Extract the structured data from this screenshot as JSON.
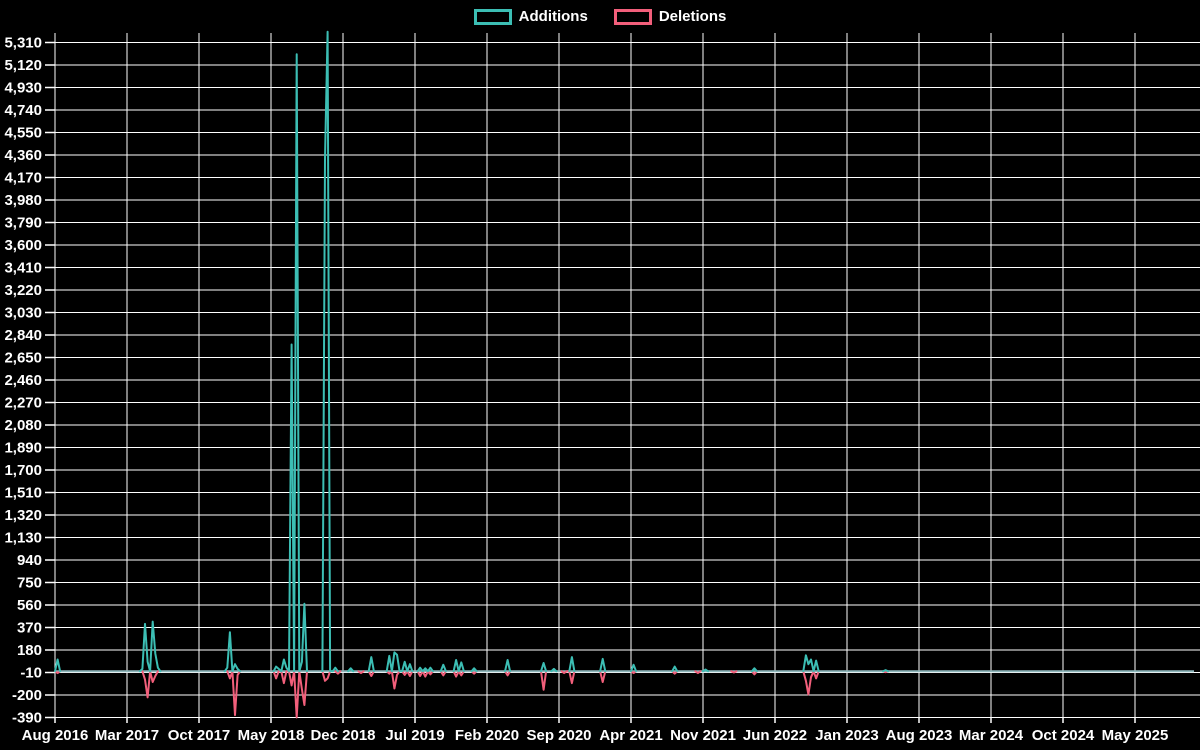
{
  "legend": {
    "additions_label": "Additions",
    "deletions_label": "Deletions"
  },
  "colors": {
    "additions": "#3cbeb4",
    "deletions": "#f25f7b",
    "baseline": "#8db6ba",
    "grid": "#ffffff",
    "background": "#000000",
    "text": "#ffffff"
  },
  "chart_data": {
    "type": "line",
    "title": "",
    "xlabel": "",
    "ylabel": "",
    "legend_position": "top-center",
    "grid": true,
    "y_axis_range": [
      -390,
      5310
    ],
    "y_tick_step": 190,
    "y_tick_labels": [
      "5,310",
      "5,120",
      "4,930",
      "4,740",
      "4,550",
      "4,360",
      "4,170",
      "3,980",
      "3,790",
      "3,600",
      "3,410",
      "3,220",
      "3,030",
      "2,840",
      "2,650",
      "2,460",
      "2,270",
      "2,080",
      "1,890",
      "1,700",
      "1,510",
      "1,320",
      "1,130",
      "940",
      "750",
      "560",
      "370",
      "180",
      "-10",
      "-200",
      "-390"
    ],
    "x_tick_labels": [
      "Aug 2016",
      "Mar 2017",
      "Oct 2017",
      "May 2018",
      "Dec 2018",
      "Jul 2019",
      "Feb 2020",
      "Sep 2020",
      "Apr 2021",
      "Nov 2021",
      "Jun 2022",
      "Jan 2023",
      "Aug 2023",
      "Mar 2024",
      "Oct 2024",
      "May 2025"
    ],
    "x_label_interval_months": 7,
    "x_axis_months": 110.75,
    "sample_step_months": 0.25,
    "series": [
      {
        "name": "Additions",
        "color_key": "additions",
        "points": [
          [
            0.25,
            100
          ],
          [
            8.5,
            20
          ],
          [
            8.8,
            400
          ],
          [
            9.1,
            80
          ],
          [
            9.45,
            420
          ],
          [
            9.75,
            150
          ],
          [
            10.0,
            30
          ],
          [
            16.8,
            30
          ],
          [
            17.1,
            330
          ],
          [
            17.45,
            60
          ],
          [
            17.7,
            20
          ],
          [
            21.4,
            40
          ],
          [
            21.7,
            20
          ],
          [
            22.3,
            100
          ],
          [
            22.6,
            30
          ],
          [
            23.1,
            2760
          ],
          [
            23.4,
            5210
          ],
          [
            23.9,
            80
          ],
          [
            24.3,
            570
          ],
          [
            26.3,
            4330
          ],
          [
            26.6,
            5400
          ],
          [
            27.2,
            30
          ],
          [
            28.7,
            25
          ],
          [
            30.7,
            120
          ],
          [
            32.6,
            130
          ],
          [
            33.0,
            160
          ],
          [
            33.3,
            140
          ],
          [
            34.1,
            80
          ],
          [
            34.5,
            60
          ],
          [
            35.6,
            30
          ],
          [
            36.1,
            25
          ],
          [
            36.4,
            30
          ],
          [
            37.8,
            55
          ],
          [
            38.9,
            95
          ],
          [
            39.4,
            75
          ],
          [
            40.8,
            25
          ],
          [
            44.0,
            95
          ],
          [
            47.5,
            70
          ],
          [
            48.4,
            20
          ],
          [
            50.3,
            120
          ],
          [
            53.3,
            105
          ],
          [
            56.2,
            55
          ],
          [
            60.3,
            40
          ],
          [
            63.3,
            15
          ],
          [
            68.1,
            25
          ],
          [
            72.9,
            135
          ],
          [
            73.2,
            60
          ],
          [
            73.5,
            100
          ],
          [
            73.9,
            90
          ],
          [
            80.7,
            10
          ]
        ]
      },
      {
        "name": "Deletions",
        "color_key": "deletions",
        "points": [
          [
            0.25,
            -15
          ],
          [
            8.8,
            -70
          ],
          [
            9.1,
            -220
          ],
          [
            9.45,
            -90
          ],
          [
            9.75,
            -40
          ],
          [
            17.1,
            -60
          ],
          [
            17.45,
            -370
          ],
          [
            17.7,
            -30
          ],
          [
            21.4,
            -60
          ],
          [
            22.3,
            -100
          ],
          [
            23.1,
            -120
          ],
          [
            23.4,
            -390
          ],
          [
            23.9,
            -150
          ],
          [
            24.3,
            -285
          ],
          [
            26.3,
            -80
          ],
          [
            26.6,
            -60
          ],
          [
            27.5,
            -20
          ],
          [
            29.8,
            -15
          ],
          [
            30.7,
            -40
          ],
          [
            32.6,
            -20
          ],
          [
            33.0,
            -145
          ],
          [
            33.3,
            -30
          ],
          [
            34.1,
            -30
          ],
          [
            34.5,
            -40
          ],
          [
            35.6,
            -40
          ],
          [
            36.1,
            -45
          ],
          [
            36.4,
            -25
          ],
          [
            37.8,
            -35
          ],
          [
            38.9,
            -45
          ],
          [
            39.4,
            -35
          ],
          [
            40.8,
            -20
          ],
          [
            44.0,
            -35
          ],
          [
            47.5,
            -155
          ],
          [
            49.4,
            -15
          ],
          [
            50.3,
            -100
          ],
          [
            53.3,
            -90
          ],
          [
            56.2,
            -15
          ],
          [
            60.3,
            -20
          ],
          [
            62.4,
            -15
          ],
          [
            66.1,
            -10
          ],
          [
            68.1,
            -25
          ],
          [
            72.9,
            -80
          ],
          [
            73.2,
            -195
          ],
          [
            73.5,
            -50
          ],
          [
            73.9,
            -60
          ],
          [
            80.7,
            -8
          ]
        ]
      }
    ]
  }
}
